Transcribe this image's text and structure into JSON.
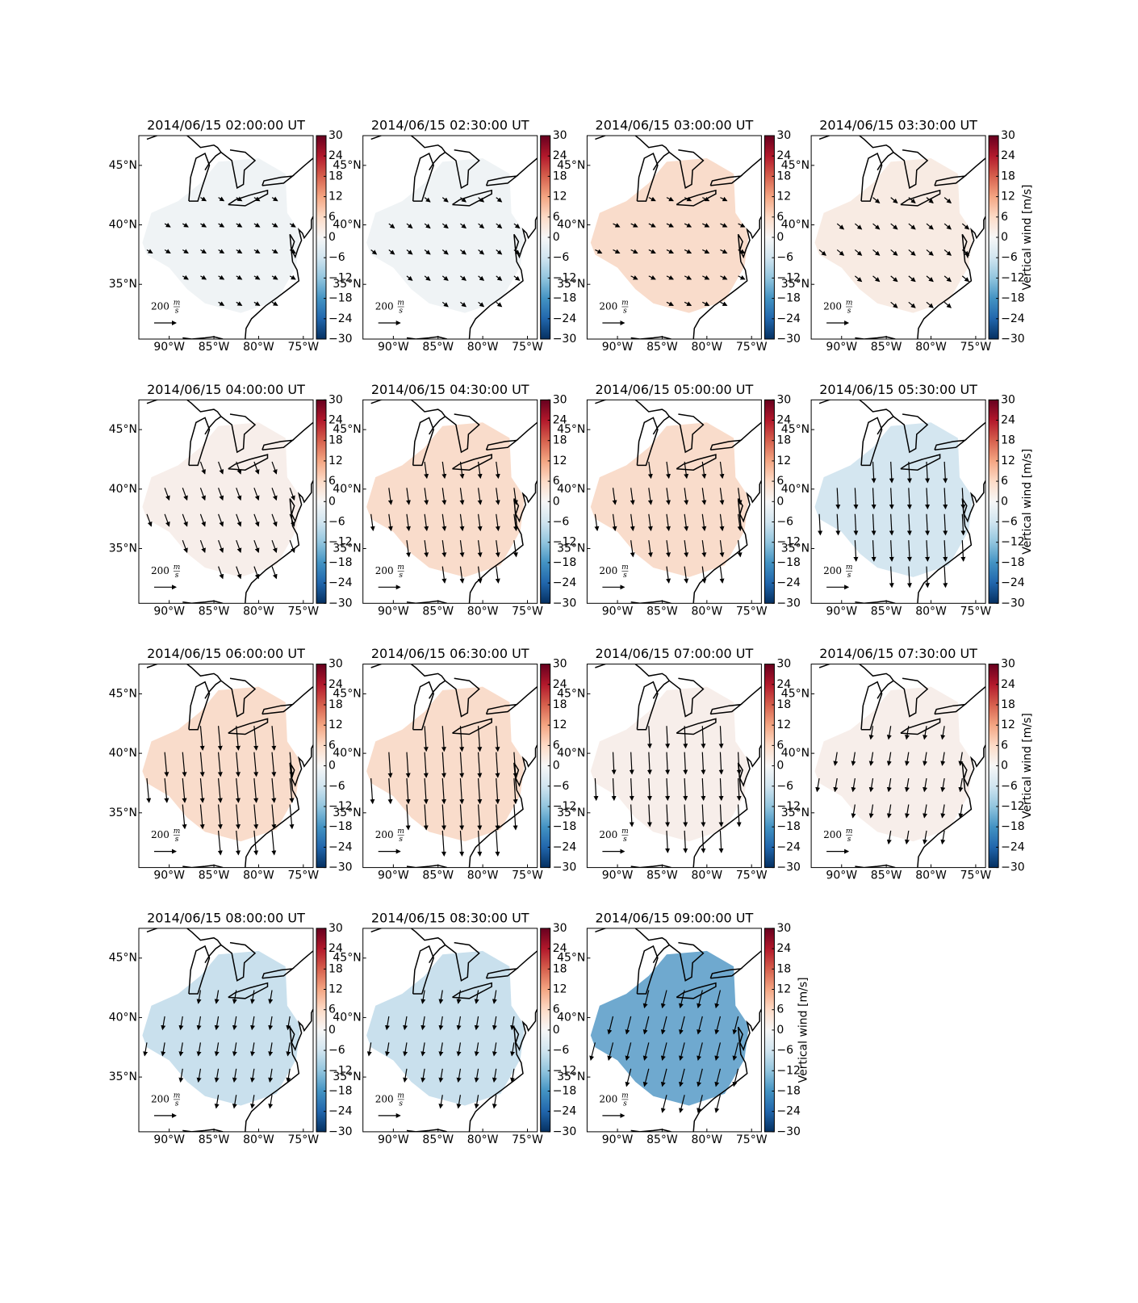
{
  "chart_data": {
    "type": "map-grid",
    "xlim": [
      -93.4,
      -73.9
    ],
    "ylim": [
      30.4,
      47.5
    ],
    "xticks": [
      {
        "value": -90,
        "label": "90°W"
      },
      {
        "value": -85,
        "label": "85°W"
      },
      {
        "value": -80,
        "label": "80°W"
      },
      {
        "value": -75,
        "label": "75°W"
      }
    ],
    "yticks": [
      {
        "value": 35,
        "label": "35°N"
      },
      {
        "value": 40,
        "label": "40°N"
      },
      {
        "value": 45,
        "label": "45°N"
      }
    ],
    "colorbar": {
      "label": "Vertical wind [m/s]",
      "lim": [
        -30,
        30
      ],
      "ticks": [
        {
          "value": -30,
          "label": "−30"
        },
        {
          "value": -24,
          "label": "−24"
        },
        {
          "value": -18,
          "label": "−18"
        },
        {
          "value": -12,
          "label": "−12"
        },
        {
          "value": -6,
          "label": "−6"
        },
        0,
        6,
        12,
        18,
        24,
        30
      ]
    },
    "quiver_key": {
      "value": 200,
      "unit_num": "m",
      "unit_den": "s"
    },
    "panels": [
      {
        "title": "2014/06/15 02:00:00 UT",
        "vertical_wind": -1,
        "color": "#eff3f5",
        "u": 50,
        "v": -30
      },
      {
        "title": "2014/06/15 02:30:00 UT",
        "vertical_wind": -1,
        "color": "#eff3f5",
        "u": 50,
        "v": -40
      },
      {
        "title": "2014/06/15 03:00:00 UT",
        "vertical_wind": 4,
        "color": "#f9dccb",
        "u": 60,
        "v": -30
      },
      {
        "title": "2014/06/15 03:30:00 UT",
        "vertical_wind": 2,
        "color": "#f8ebe3",
        "u": 60,
        "v": -50
      },
      {
        "title": "2014/06/15 04:00:00 UT",
        "vertical_wind": 1.5,
        "color": "#f7eeea",
        "u": 40,
        "v": -110
      },
      {
        "title": "2014/06/15 04:30:00 UT",
        "vertical_wind": 4,
        "color": "#f9dccb",
        "u": 20,
        "v": -150
      },
      {
        "title": "2014/06/15 05:00:00 UT",
        "vertical_wind": 4,
        "color": "#f9dccb",
        "u": 20,
        "v": -150
      },
      {
        "title": "2014/06/15 05:30:00 UT",
        "vertical_wind": -4,
        "color": "#d4e6f0",
        "u": 10,
        "v": -190
      },
      {
        "title": "2014/06/15 06:00:00 UT",
        "vertical_wind": 4,
        "color": "#f9dccb",
        "u": 20,
        "v": -220
      },
      {
        "title": "2014/06/15 06:30:00 UT",
        "vertical_wind": 4,
        "color": "#f9dccb",
        "u": 15,
        "v": -230
      },
      {
        "title": "2014/06/15 07:00:00 UT",
        "vertical_wind": 1.5,
        "color": "#f7eeea",
        "u": 10,
        "v": -200
      },
      {
        "title": "2014/06/15 07:30:00 UT",
        "vertical_wind": 1.5,
        "color": "#f7eeea",
        "u": -20,
        "v": -120
      },
      {
        "title": "2014/06/15 08:00:00 UT",
        "vertical_wind": -5,
        "color": "#c9e0ed",
        "u": -20,
        "v": -120
      },
      {
        "title": "2014/06/15 08:30:00 UT",
        "vertical_wind": -5,
        "color": "#c9e0ed",
        "u": -20,
        "v": -120
      },
      {
        "title": "2014/06/15 09:00:00 UT",
        "vertical_wind": -12,
        "color": "#6fa9cf",
        "u": -40,
        "v": -160
      }
    ]
  }
}
